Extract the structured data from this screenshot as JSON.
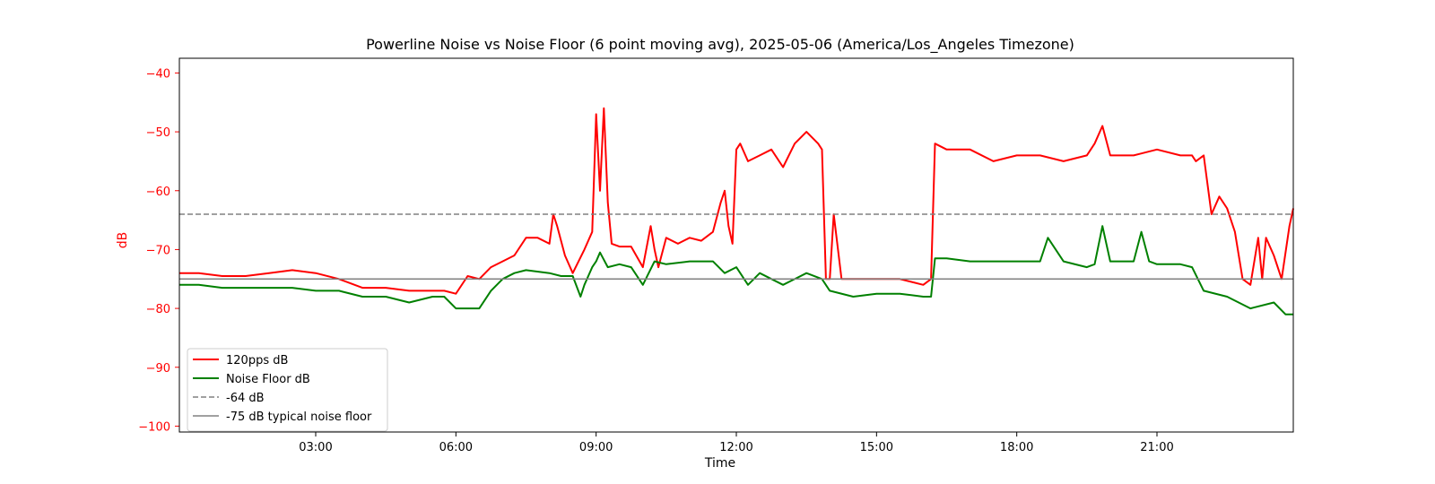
{
  "chart_data": {
    "type": "line",
    "title": "Powerline Noise vs Noise Floor (6 point moving avg), 2025-05-06 (America/Los_Angeles Timezone)",
    "xlabel": "Time",
    "ylabel": "dB",
    "x_unit": "hours",
    "xlim": [
      "00:05",
      "23:55"
    ],
    "ylim": [
      -101,
      -37.5
    ],
    "x_ticks": [
      "03:00",
      "06:00",
      "09:00",
      "12:00",
      "15:00",
      "18:00",
      "21:00"
    ],
    "y_ticks": [
      -40,
      -50,
      -60,
      -70,
      -80,
      -90,
      -100
    ],
    "grid": false,
    "legend_position": "lower-left",
    "colors": {
      "axis_label": "#ff0000",
      "y_ticks": "#ff0000"
    },
    "series": [
      {
        "name": "120pps dB",
        "color": "#ff0000",
        "style": "solid",
        "x": [
          "00:05",
          "00:30",
          "01:00",
          "01:30",
          "02:00",
          "02:30",
          "03:00",
          "03:30",
          "04:00",
          "04:30",
          "05:00",
          "05:30",
          "05:45",
          "06:00",
          "06:15",
          "06:30",
          "06:45",
          "07:00",
          "07:15",
          "07:30",
          "07:45",
          "08:00",
          "08:05",
          "08:10",
          "08:20",
          "08:30",
          "08:45",
          "08:55",
          "09:00",
          "09:05",
          "09:10",
          "09:15",
          "09:20",
          "09:30",
          "09:45",
          "10:00",
          "10:10",
          "10:15",
          "10:20",
          "10:30",
          "10:45",
          "11:00",
          "11:15",
          "11:30",
          "11:40",
          "11:45",
          "11:50",
          "11:55",
          "12:00",
          "12:05",
          "12:15",
          "12:30",
          "12:45",
          "13:00",
          "13:15",
          "13:30",
          "13:45",
          "13:50",
          "13:55",
          "14:00",
          "14:05",
          "14:15",
          "14:30",
          "15:00",
          "15:30",
          "16:00",
          "16:10",
          "16:15",
          "16:30",
          "17:00",
          "17:30",
          "18:00",
          "18:30",
          "19:00",
          "19:30",
          "19:40",
          "19:50",
          "20:00",
          "20:30",
          "21:00",
          "21:30",
          "21:45",
          "21:50",
          "22:00",
          "22:10",
          "22:20",
          "22:30",
          "22:40",
          "22:50",
          "23:00",
          "23:10",
          "23:15",
          "23:20",
          "23:30",
          "23:40",
          "23:50",
          "23:55"
        ],
        "values": [
          -74,
          -74,
          -74.5,
          -74.5,
          -74,
          -73.5,
          -74,
          -75,
          -76.5,
          -76.5,
          -77,
          -77,
          -77,
          -77.5,
          -74.5,
          -75,
          -73,
          -72,
          -71,
          -68,
          -68,
          -69,
          -64,
          -66,
          -71,
          -74,
          -70,
          -67,
          -47,
          -60,
          -46,
          -62,
          -69,
          -69.5,
          -69.5,
          -73,
          -66,
          -70,
          -73,
          -68,
          -69,
          -68,
          -68.5,
          -67,
          -62,
          -60,
          -66,
          -69,
          -53,
          -52,
          -55,
          -54,
          -53,
          -56,
          -52,
          -50,
          -52,
          -53,
          -75,
          -75,
          -64,
          -75,
          -75,
          -75,
          -75,
          -76,
          -75,
          -52,
          -53,
          -53,
          -55,
          -54,
          -54,
          -55,
          -54,
          -52,
          -49,
          -54,
          -54,
          -53,
          -54,
          -54,
          -55,
          -54,
          -64,
          -61,
          -63,
          -67,
          -75,
          -76,
          -68,
          -75,
          -68,
          -71,
          -75,
          -66,
          -63
        ]
      },
      {
        "name": "Noise Floor dB",
        "color": "#008000",
        "style": "solid",
        "x": [
          "00:05",
          "00:30",
          "01:00",
          "01:30",
          "02:00",
          "02:30",
          "03:00",
          "03:30",
          "04:00",
          "04:30",
          "05:00",
          "05:30",
          "05:45",
          "06:00",
          "06:15",
          "06:30",
          "06:45",
          "07:00",
          "07:15",
          "07:30",
          "08:00",
          "08:15",
          "08:30",
          "08:40",
          "08:45",
          "08:55",
          "09:00",
          "09:05",
          "09:15",
          "09:30",
          "09:45",
          "10:00",
          "10:15",
          "10:30",
          "11:00",
          "11:30",
          "11:45",
          "12:00",
          "12:15",
          "12:30",
          "13:00",
          "13:30",
          "13:50",
          "14:00",
          "14:30",
          "15:00",
          "15:30",
          "16:00",
          "16:10",
          "16:15",
          "16:30",
          "17:00",
          "17:30",
          "18:00",
          "18:30",
          "18:40",
          "19:00",
          "19:30",
          "19:40",
          "19:50",
          "20:00",
          "20:30",
          "20:40",
          "20:50",
          "21:00",
          "21:30",
          "21:45",
          "22:00",
          "22:30",
          "23:00",
          "23:30",
          "23:45",
          "23:55"
        ],
        "values": [
          -76,
          -76,
          -76.5,
          -76.5,
          -76.5,
          -76.5,
          -77,
          -77,
          -78,
          -78,
          -79,
          -78,
          -78,
          -80,
          -80,
          -80,
          -77,
          -75,
          -74,
          -73.5,
          -74,
          -74.5,
          -74.5,
          -78,
          -76,
          -73,
          -72,
          -70.5,
          -73,
          -72.5,
          -73,
          -76,
          -72,
          -72.5,
          -72,
          -72,
          -74,
          -73,
          -76,
          -74,
          -76,
          -74,
          -75,
          -77,
          -78,
          -77.5,
          -77.5,
          -78,
          -78,
          -71.5,
          -71.5,
          -72,
          -72,
          -72,
          -72,
          -68,
          -72,
          -73,
          -72.5,
          -66,
          -72,
          -72,
          -67,
          -72,
          -72.5,
          -72.5,
          -73,
          -77,
          -78,
          -80,
          -79,
          -81,
          -81
        ]
      },
      {
        "name": "-64 dB",
        "color": "#808080",
        "style": "dashed",
        "constant": -64
      },
      {
        "name": "-75 dB typical noise floor",
        "color": "#808080",
        "style": "solid",
        "constant": -75
      }
    ]
  }
}
